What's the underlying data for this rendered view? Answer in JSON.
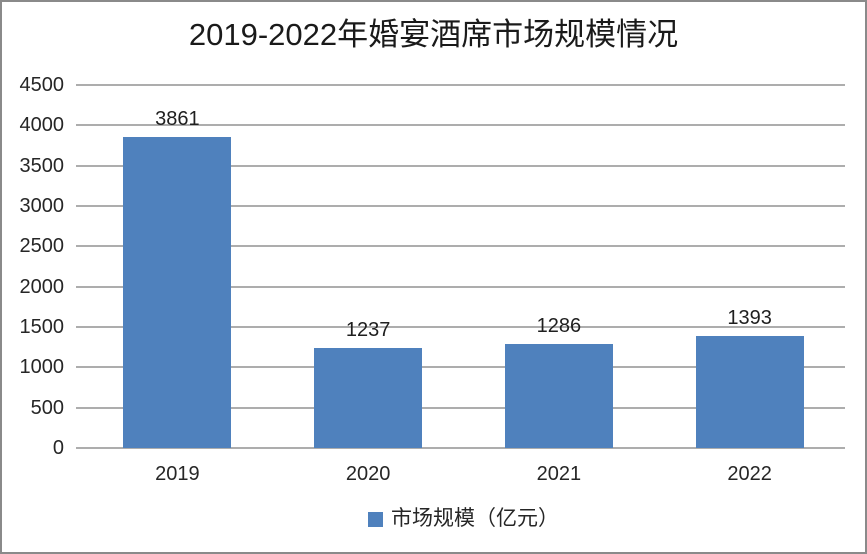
{
  "chart_data": {
    "type": "bar",
    "title": "2019-2022年婚宴酒席市场规模情况",
    "categories": [
      "2019",
      "2020",
      "2021",
      "2022"
    ],
    "values": [
      3861,
      1237,
      1286,
      1393
    ],
    "series": [
      {
        "name": "市场规模（亿元）",
        "values": [
          3861,
          1237,
          1286,
          1393
        ]
      }
    ],
    "xlabel": "",
    "ylabel": "",
    "ylim": [
      0,
      4500
    ],
    "ytick_step": 500,
    "yticks": [
      0,
      500,
      1000,
      1500,
      2000,
      2500,
      3000,
      3500,
      4000,
      4500
    ],
    "grid": true,
    "legend": "市场规模（亿元）",
    "legend_position": "bottom-center",
    "bar_color": "#4F81BD"
  },
  "colors": {
    "bar": "#4F81BD",
    "gridline": "#ADADAD",
    "frame_border": "#8A8A8A",
    "text": "#262626",
    "background": "#FFFFFF"
  }
}
